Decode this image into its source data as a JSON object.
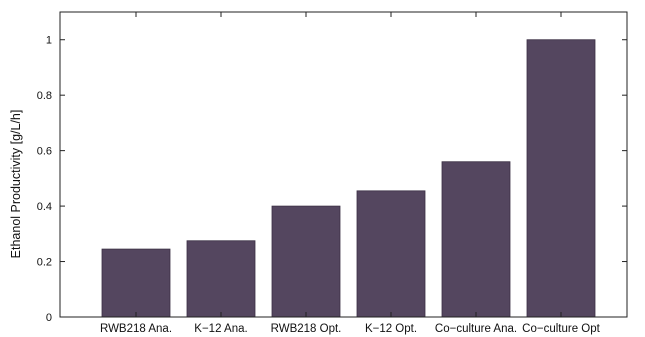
{
  "chart_data": {
    "type": "bar",
    "categories": [
      "RWB218 Ana.",
      "K−12 Ana.",
      "RWB218 Opt.",
      "K−12 Opt.",
      "Co−culture Ana.",
      "Co−culture Opt"
    ],
    "values": [
      0.245,
      0.275,
      0.4,
      0.455,
      0.56,
      1.0
    ],
    "xlabel": "",
    "ylabel": "Ethanol Productivity [g/L/h]",
    "ylim": [
      0,
      1.1
    ],
    "yticks": [
      0,
      0.2,
      0.4,
      0.6,
      0.8,
      1
    ],
    "ytick_labels": [
      "0",
      "0.2",
      "0.4",
      "0.6",
      "0.8",
      "1"
    ],
    "grid": false,
    "colors": {
      "bar": "#54465f",
      "bar_edge": "#3a2f44",
      "axis": "#222222"
    }
  }
}
